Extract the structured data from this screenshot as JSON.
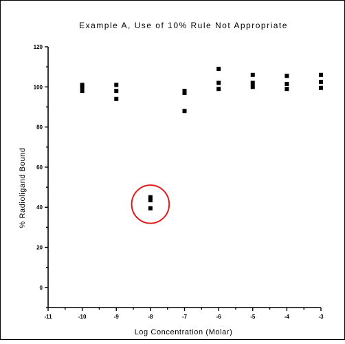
{
  "chart_data": {
    "type": "scatter",
    "title": "Example  A, Use of 10% Rule Not Appropriate",
    "xlabel": "Log Concentration (Molar)",
    "ylabel": "% Radioligand Bound",
    "xlim": [
      -11,
      -3
    ],
    "ylim": [
      -10,
      120
    ],
    "x_ticks": [
      -11,
      -10,
      -9,
      -8,
      -7,
      -6,
      -5,
      -4,
      -3
    ],
    "y_ticks": [
      0,
      20,
      40,
      60,
      80,
      100,
      120
    ],
    "grid": false,
    "points": [
      {
        "x": -10,
        "y": 101
      },
      {
        "x": -10,
        "y": 100
      },
      {
        "x": -10,
        "y": 98
      },
      {
        "x": -9,
        "y": 101
      },
      {
        "x": -9,
        "y": 98
      },
      {
        "x": -9,
        "y": 94
      },
      {
        "x": -8,
        "y": 45
      },
      {
        "x": -8,
        "y": 43.5
      },
      {
        "x": -8,
        "y": 39.5
      },
      {
        "x": -7,
        "y": 98
      },
      {
        "x": -7,
        "y": 97
      },
      {
        "x": -7,
        "y": 88
      },
      {
        "x": -6,
        "y": 109
      },
      {
        "x": -6,
        "y": 102
      },
      {
        "x": -6,
        "y": 99
      },
      {
        "x": -5,
        "y": 106
      },
      {
        "x": -5,
        "y": 102
      },
      {
        "x": -5,
        "y": 100
      },
      {
        "x": -4,
        "y": 105.5
      },
      {
        "x": -4,
        "y": 101.5
      },
      {
        "x": -4,
        "y": 99
      },
      {
        "x": -3,
        "y": 106
      },
      {
        "x": -3,
        "y": 102.5
      },
      {
        "x": -3,
        "y": 99.5
      }
    ],
    "marker_color": "#000000",
    "annotations": [
      {
        "type": "ellipse",
        "center_x": -8,
        "center_y": 41.5,
        "radius_x": 0.55,
        "radius_y": 9.5,
        "color": "#e0191b"
      }
    ]
  }
}
